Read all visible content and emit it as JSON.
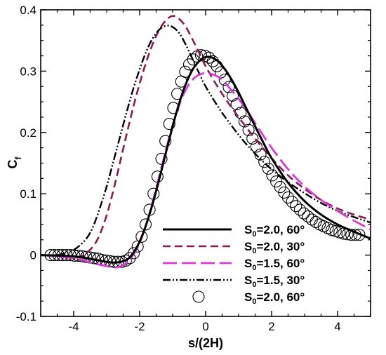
{
  "chart_data": {
    "type": "line",
    "title": "",
    "xlabel": "s/(2H)",
    "ylabel": {
      "main": "C",
      "sub": "f"
    },
    "xlim": [
      -5,
      5
    ],
    "ylim": [
      -0.1,
      0.4
    ],
    "xticks": [
      -4,
      -2,
      0,
      2,
      4
    ],
    "yticks": [
      -0.1,
      0,
      0.1,
      0.2,
      0.3,
      0.4
    ],
    "xtick_labels": [
      "-4",
      "-2",
      "0",
      "2",
      "4"
    ],
    "ytick_labels": [
      "-0.1",
      "0",
      "0.1",
      "0.2",
      "0.3",
      "0.4"
    ],
    "grid": false,
    "legend_position": "bottom-right",
    "series": [
      {
        "name": "S0=2.0, 60°",
        "label": {
          "pre": "S",
          "sub": "0",
          "post": "=2.0, 60°"
        },
        "style": "solid",
        "color": "#000000",
        "x": [
          -5,
          -4,
          -3.5,
          -3,
          -2.7,
          -2.4,
          -2.2,
          -2.0,
          -1.8,
          -1.6,
          -1.4,
          -1.2,
          -1.0,
          -0.8,
          -0.6,
          -0.4,
          -0.2,
          0,
          0.2,
          0.4,
          0.6,
          0.8,
          1.0,
          1.2,
          1.5,
          1.8,
          2.0,
          2.5,
          3.0,
          3.5,
          4.0,
          4.5,
          5.0
        ],
        "y": [
          0,
          -0.002,
          -0.006,
          -0.011,
          -0.012,
          -0.008,
          0.003,
          0.022,
          0.05,
          0.085,
          0.125,
          0.168,
          0.21,
          0.248,
          0.279,
          0.302,
          0.316,
          0.323,
          0.322,
          0.315,
          0.302,
          0.285,
          0.265,
          0.243,
          0.21,
          0.178,
          0.158,
          0.118,
          0.088,
          0.066,
          0.05,
          0.038,
          0.027
        ]
      },
      {
        "name": "S0=2.0, 30°",
        "label": {
          "pre": "S",
          "sub": "0",
          "post": "=2.0, 30°"
        },
        "style": "short-dash",
        "color": "#8b1a52",
        "x": [
          -5,
          -4.5,
          -4.0,
          -3.7,
          -3.4,
          -3.2,
          -3.0,
          -2.8,
          -2.6,
          -2.4,
          -2.2,
          -2.0,
          -1.8,
          -1.6,
          -1.4,
          -1.2,
          -1.0,
          -0.8,
          -0.6,
          -0.4,
          -0.2,
          0,
          0.3,
          0.6,
          1.0,
          1.5,
          2.0,
          2.5,
          3.0,
          3.5,
          4.0,
          4.5,
          5.0
        ],
        "y": [
          0,
          -0.001,
          -0.004,
          0.0,
          0.015,
          0.035,
          0.065,
          0.105,
          0.15,
          0.196,
          0.24,
          0.28,
          0.315,
          0.345,
          0.368,
          0.383,
          0.39,
          0.385,
          0.372,
          0.352,
          0.33,
          0.308,
          0.28,
          0.255,
          0.225,
          0.19,
          0.158,
          0.13,
          0.108,
          0.09,
          0.076,
          0.066,
          0.058
        ]
      },
      {
        "name": "S0=1.5, 60°",
        "label": {
          "pre": "S",
          "sub": "0",
          "post": "=1.5, 60°"
        },
        "style": "long-dash",
        "color": "#d63bd6",
        "x": [
          -5,
          -4,
          -3.5,
          -3.0,
          -2.7,
          -2.4,
          -2.2,
          -2.0,
          -1.8,
          -1.6,
          -1.4,
          -1.2,
          -1.0,
          -0.8,
          -0.6,
          -0.4,
          -0.2,
          0,
          0.2,
          0.4,
          0.6,
          0.8,
          1.0,
          1.3,
          1.6,
          2.0,
          2.5,
          3.0,
          3.5,
          4.0,
          4.5,
          5.0
        ],
        "y": [
          0,
          -0.005,
          -0.012,
          -0.018,
          -0.02,
          -0.013,
          0.0,
          0.02,
          0.05,
          0.088,
          0.13,
          0.172,
          0.212,
          0.245,
          0.27,
          0.286,
          0.294,
          0.297,
          0.295,
          0.29,
          0.28,
          0.268,
          0.255,
          0.232,
          0.207,
          0.175,
          0.14,
          0.112,
          0.09,
          0.072,
          0.056,
          0.042
        ]
      },
      {
        "name": "S0=1.5, 30°",
        "label": {
          "pre": "S",
          "sub": "0",
          "post": "=1.5, 30°"
        },
        "style": "dash-dot-dot",
        "color": "#000000",
        "x": [
          -5,
          -4.5,
          -4.2,
          -3.9,
          -3.6,
          -3.4,
          -3.2,
          -3.0,
          -2.8,
          -2.6,
          -2.4,
          -2.2,
          -2.0,
          -1.8,
          -1.6,
          -1.4,
          -1.2,
          -1.0,
          -0.8,
          -0.6,
          -0.4,
          -0.2,
          0,
          0.4,
          0.8,
          1.2,
          1.6,
          2.0,
          2.5,
          3.0,
          3.5,
          4.0,
          4.5,
          5.0
        ],
        "y": [
          0,
          0.0,
          0.004,
          0.012,
          0.028,
          0.048,
          0.078,
          0.112,
          0.152,
          0.192,
          0.232,
          0.27,
          0.303,
          0.332,
          0.354,
          0.368,
          0.374,
          0.372,
          0.362,
          0.343,
          0.32,
          0.297,
          0.275,
          0.24,
          0.21,
          0.183,
          0.16,
          0.14,
          0.119,
          0.101,
          0.085,
          0.072,
          0.062,
          0.053
        ]
      },
      {
        "name": "S0=2.0, 60°",
        "label": {
          "pre": "S",
          "sub": "0",
          "post": "=2.0, 60°"
        },
        "style": "open-circles",
        "color": "#000000",
        "x": [
          -4.7,
          -4.58,
          -4.46,
          -4.34,
          -4.22,
          -4.1,
          -3.98,
          -3.86,
          -3.74,
          -3.62,
          -3.5,
          -3.38,
          -3.26,
          -3.14,
          -3.02,
          -2.9,
          -2.78,
          -2.66,
          -2.54,
          -2.42,
          -2.3,
          -2.18,
          -2.06,
          -1.94,
          -1.82,
          -1.7,
          -1.58,
          -1.46,
          -1.34,
          -1.22,
          -1.1,
          -0.98,
          -0.86,
          -0.74,
          -0.62,
          -0.5,
          -0.38,
          -0.26,
          -0.14,
          -0.02,
          0.1,
          0.22,
          0.34,
          0.46,
          0.58,
          0.7,
          0.82,
          0.94,
          1.06,
          1.18,
          1.3,
          1.42,
          1.54,
          1.66,
          1.78,
          1.9,
          2.02,
          2.14,
          2.26,
          2.38,
          2.5,
          2.62,
          2.74,
          2.86,
          2.98,
          3.1,
          3.22,
          3.34,
          3.46,
          3.58,
          3.7,
          3.82,
          3.94,
          4.06,
          4.18,
          4.3,
          4.42,
          4.54,
          4.66
        ],
        "y": [
          0.0,
          0.0,
          0.0,
          0.0,
          0.0,
          0.0,
          -0.001,
          -0.001,
          -0.002,
          -0.003,
          -0.004,
          -0.005,
          -0.006,
          -0.008,
          -0.009,
          -0.01,
          -0.011,
          -0.011,
          -0.011,
          -0.009,
          -0.005,
          0.003,
          0.014,
          0.03,
          0.05,
          0.074,
          0.1,
          0.128,
          0.157,
          0.186,
          0.214,
          0.24,
          0.263,
          0.283,
          0.299,
          0.311,
          0.319,
          0.324,
          0.326,
          0.325,
          0.322,
          0.316,
          0.308,
          0.298,
          0.286,
          0.274,
          0.26,
          0.246,
          0.232,
          0.218,
          0.204,
          0.19,
          0.177,
          0.164,
          0.152,
          0.141,
          0.13,
          0.12,
          0.111,
          0.102,
          0.094,
          0.087,
          0.08,
          0.074,
          0.068,
          0.063,
          0.058,
          0.054,
          0.05,
          0.047,
          0.044,
          0.041,
          0.039,
          0.037,
          0.035,
          0.034,
          0.033,
          0.033,
          0.033
        ]
      }
    ]
  }
}
